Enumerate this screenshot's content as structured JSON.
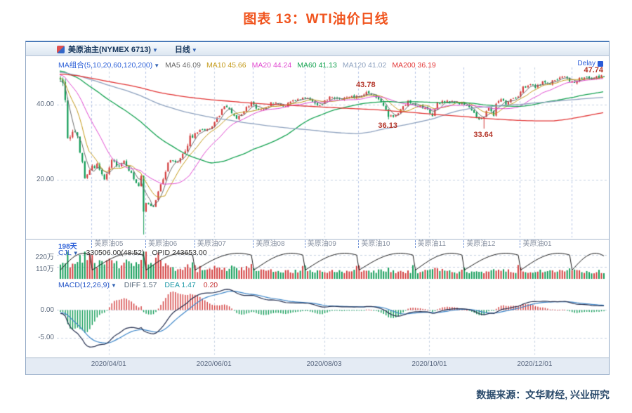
{
  "page": {
    "title": "图表 13：WTI油价日线",
    "source_note": "数据来源：文华财经, 兴业研究",
    "accent_color": "#f0541e"
  },
  "toolbar": {
    "instrument": "美原油主(NYMEX 6713)",
    "period": "日线",
    "delay_label": "Delay"
  },
  "legend": {
    "ma_group_label": "MA组合(5,10,20,60,120,200)",
    "items": [
      {
        "label": "MA5 46.09",
        "period": 5,
        "color": "#6a6a6a"
      },
      {
        "label": "MA10 45.66",
        "period": 10,
        "color": "#c49a1a"
      },
      {
        "label": "MA20 44.24",
        "period": 20,
        "color": "#e04ad0"
      },
      {
        "label": "MA60 41.13",
        "period": 60,
        "color": "#16a352"
      },
      {
        "label": "MA120 41.02",
        "period": 120,
        "color": "#8ea2bf"
      },
      {
        "label": "MA200 36.19",
        "period": 200,
        "color": "#e23636"
      }
    ]
  },
  "axis": {
    "main_ticks": [
      {
        "label": "40.00",
        "price": 40
      },
      {
        "label": "20.00",
        "price": 20
      }
    ],
    "days_label": "198天",
    "contracts": [
      {
        "label": "美原油05",
        "date": "2020-03-23"
      },
      {
        "label": "美原油06",
        "date": "2020-04-22"
      },
      {
        "label": "美原油07",
        "date": "2020-05-20"
      },
      {
        "label": "美原油08",
        "date": "2020-06-23"
      },
      {
        "label": "美原油09",
        "date": "2020-07-22"
      },
      {
        "label": "美原油10",
        "date": "2020-08-21"
      },
      {
        "label": "美原油11",
        "date": "2020-09-23"
      },
      {
        "label": "美原油12",
        "date": "2020-10-21"
      },
      {
        "label": "美原油01",
        "date": "2020-11-23"
      }
    ],
    "dates": [
      {
        "label": "2020/04/01",
        "date": "2020-04-01"
      },
      {
        "label": "2020/06/01",
        "date": "2020-06-01"
      },
      {
        "label": "2020/08/03",
        "date": "2020-08-03"
      },
      {
        "label": "2020/10/01",
        "date": "2020-10-01"
      },
      {
        "label": "2020/12/01",
        "date": "2020-12-01"
      }
    ]
  },
  "cjl": {
    "title": "CJL",
    "value_text": "330506.00(48:52)",
    "opid_text": "OPID 243653.00",
    "ticks": [
      {
        "label": "220万",
        "value": 220
      },
      {
        "label": "110万",
        "value": 110
      }
    ]
  },
  "macd": {
    "title": "MACD(12,26,9)",
    "items": [
      {
        "label": "DIFF 1.57",
        "color": "#56687a"
      },
      {
        "label": "DEA 1.47",
        "color": "#1f9aa8"
      },
      {
        "label": "0.20",
        "color": "#c83232"
      }
    ],
    "ticks": [
      {
        "label": "0.00",
        "value": 0
      },
      {
        "label": "-5.00",
        "value": -5
      }
    ]
  },
  "chart_data": {
    "type": "candlestick",
    "panels": [
      "price_with_ma",
      "volume_open_interest_cjl",
      "macd"
    ],
    "title": "WTI油价日线 (美原油主 NYMEX)",
    "history_start": "2019-05-01",
    "visible_start": "2020-03-04",
    "end_date": "2021-01-08",
    "main_range": [
      5,
      50
    ],
    "cjl_range": [
      0,
      260
    ],
    "macd_range": [
      4.9,
      -8.1
    ],
    "colors": {
      "up": "#d23b3b",
      "down": "#0f9b55",
      "grid": "#c6d2e2",
      "boundary": "#b4c3e6",
      "oi": "#1a1a1a",
      "diff": "#263050",
      "dea": "#3f87c9"
    },
    "roll_dates": [
      "2020-03-23",
      "2020-04-22",
      "2020-05-20",
      "2020-06-23",
      "2020-07-22",
      "2020-08-21",
      "2020-09-23",
      "2020-10-21",
      "2020-11-23",
      "2020-12-22"
    ],
    "annotations": [
      {
        "d": "2020-08-26",
        "text": "43.78",
        "place": "above"
      },
      {
        "d": "2020-09-08",
        "text": "36.13",
        "place": "below"
      },
      {
        "d": "2020-11-02",
        "text": "33.64",
        "place": "below"
      },
      {
        "d": "2021-01-08",
        "text": "47.74",
        "place": "above"
      }
    ],
    "keypoints": [
      {
        "d": "2019-05-01",
        "c": 45.0
      },
      {
        "d": "2019-06-03",
        "c": 46.5
      },
      {
        "d": "2019-07-01",
        "c": 48.0
      },
      {
        "d": "2019-08-01",
        "c": 46.5
      },
      {
        "d": "2019-09-16",
        "c": 49.5
      },
      {
        "d": "2019-10-01",
        "c": 47.0
      },
      {
        "d": "2019-11-01",
        "c": 48.5
      },
      {
        "d": "2019-12-02",
        "c": 49.0
      },
      {
        "d": "2020-01-06",
        "c": 50.5
      },
      {
        "d": "2020-01-31",
        "c": 48.0
      },
      {
        "d": "2020-02-20",
        "c": 49.5
      },
      {
        "d": "2020-02-28",
        "c": 45.3
      },
      {
        "d": "2020-03-03",
        "c": 47.2
      },
      {
        "d": "2020-03-04",
        "c": 46.8
      },
      {
        "d": "2020-03-05",
        "c": 45.9
      },
      {
        "d": "2020-03-06",
        "c": 41.3
      },
      {
        "d": "2020-03-09",
        "c": 31.1
      },
      {
        "d": "2020-03-11",
        "c": 32.8
      },
      {
        "d": "2020-03-13",
        "c": 31.7
      },
      {
        "d": "2020-03-18",
        "c": 20.4
      },
      {
        "d": "2020-03-20",
        "c": 22.6
      },
      {
        "d": "2020-03-25",
        "c": 24.3
      },
      {
        "d": "2020-03-30",
        "c": 20.1
      },
      {
        "d": "2020-04-02",
        "c": 25.3
      },
      {
        "d": "2020-04-07",
        "c": 23.6
      },
      {
        "d": "2020-04-09",
        "c": 25.1
      },
      {
        "d": "2020-04-13",
        "c": 22.4
      },
      {
        "d": "2020-04-17",
        "c": 18.3
      },
      {
        "d": "2020-04-20",
        "c": 21.0
      },
      {
        "d": "2020-04-21",
        "c": 11.5,
        "lo": 5.4
      },
      {
        "d": "2020-04-22",
        "c": 13.8
      },
      {
        "d": "2020-04-27",
        "c": 12.8
      },
      {
        "d": "2020-04-30",
        "c": 18.8
      },
      {
        "d": "2020-05-05",
        "c": 24.6
      },
      {
        "d": "2020-05-08",
        "c": 24.7
      },
      {
        "d": "2020-05-14",
        "c": 27.6
      },
      {
        "d": "2020-05-18",
        "c": 31.8
      },
      {
        "d": "2020-05-22",
        "c": 33.3
      },
      {
        "d": "2020-05-28",
        "c": 33.7
      },
      {
        "d": "2020-06-01",
        "c": 35.4
      },
      {
        "d": "2020-06-05",
        "c": 39.6
      },
      {
        "d": "2020-06-09",
        "c": 38.9
      },
      {
        "d": "2020-06-12",
        "c": 36.3
      },
      {
        "d": "2020-06-15",
        "c": 37.1
      },
      {
        "d": "2020-06-22",
        "c": 40.7
      },
      {
        "d": "2020-06-25",
        "c": 38.7
      },
      {
        "d": "2020-06-30",
        "c": 39.3
      },
      {
        "d": "2020-07-02",
        "c": 40.7
      },
      {
        "d": "2020-07-09",
        "c": 39.6
      },
      {
        "d": "2020-07-15",
        "c": 41.2
      },
      {
        "d": "2020-07-21",
        "c": 41.9
      },
      {
        "d": "2020-07-24",
        "c": 41.3
      },
      {
        "d": "2020-07-30",
        "c": 39.9
      },
      {
        "d": "2020-08-05",
        "c": 42.2
      },
      {
        "d": "2020-08-11",
        "c": 41.6
      },
      {
        "d": "2020-08-14",
        "c": 42.0
      },
      {
        "d": "2020-08-21",
        "c": 42.3
      },
      {
        "d": "2020-08-26",
        "c": 43.4,
        "hi": 43.78
      },
      {
        "d": "2020-08-31",
        "c": 42.6
      },
      {
        "d": "2020-09-02",
        "c": 41.5
      },
      {
        "d": "2020-09-04",
        "c": 39.8
      },
      {
        "d": "2020-09-08",
        "c": 36.8,
        "lo": 36.13
      },
      {
        "d": "2020-09-11",
        "c": 37.3
      },
      {
        "d": "2020-09-18",
        "c": 41.1
      },
      {
        "d": "2020-09-23",
        "c": 39.9
      },
      {
        "d": "2020-09-29",
        "c": 39.3
      },
      {
        "d": "2020-10-02",
        "c": 37.0
      },
      {
        "d": "2020-10-06",
        "c": 40.7
      },
      {
        "d": "2020-10-09",
        "c": 40.6
      },
      {
        "d": "2020-10-14",
        "c": 41.0
      },
      {
        "d": "2020-10-16",
        "c": 40.9
      },
      {
        "d": "2020-10-21",
        "c": 40.0
      },
      {
        "d": "2020-10-26",
        "c": 38.6
      },
      {
        "d": "2020-10-29",
        "c": 36.2
      },
      {
        "d": "2020-11-02",
        "c": 36.8,
        "lo": 33.64
      },
      {
        "d": "2020-11-04",
        "c": 39.2
      },
      {
        "d": "2020-11-06",
        "c": 37.1
      },
      {
        "d": "2020-11-09",
        "c": 40.3
      },
      {
        "d": "2020-11-11",
        "c": 41.5
      },
      {
        "d": "2020-11-13",
        "c": 40.1
      },
      {
        "d": "2020-11-18",
        "c": 41.8
      },
      {
        "d": "2020-11-20",
        "c": 42.2
      },
      {
        "d": "2020-11-24",
        "c": 44.9
      },
      {
        "d": "2020-11-27",
        "c": 45.5
      },
      {
        "d": "2020-12-01",
        "c": 44.6
      },
      {
        "d": "2020-12-04",
        "c": 46.3
      },
      {
        "d": "2020-12-09",
        "c": 45.5
      },
      {
        "d": "2020-12-11",
        "c": 46.6
      },
      {
        "d": "2020-12-15",
        "c": 47.3
      },
      {
        "d": "2020-12-18",
        "c": 47.1
      },
      {
        "d": "2020-12-22",
        "c": 46.3
      },
      {
        "d": "2020-12-29",
        "c": 47.3
      },
      {
        "d": "2020-12-31",
        "c": 47.0
      },
      {
        "d": "2021-01-04",
        "c": 47.2
      },
      {
        "d": "2021-01-08",
        "c": 47.6,
        "hi": 47.74
      }
    ]
  }
}
